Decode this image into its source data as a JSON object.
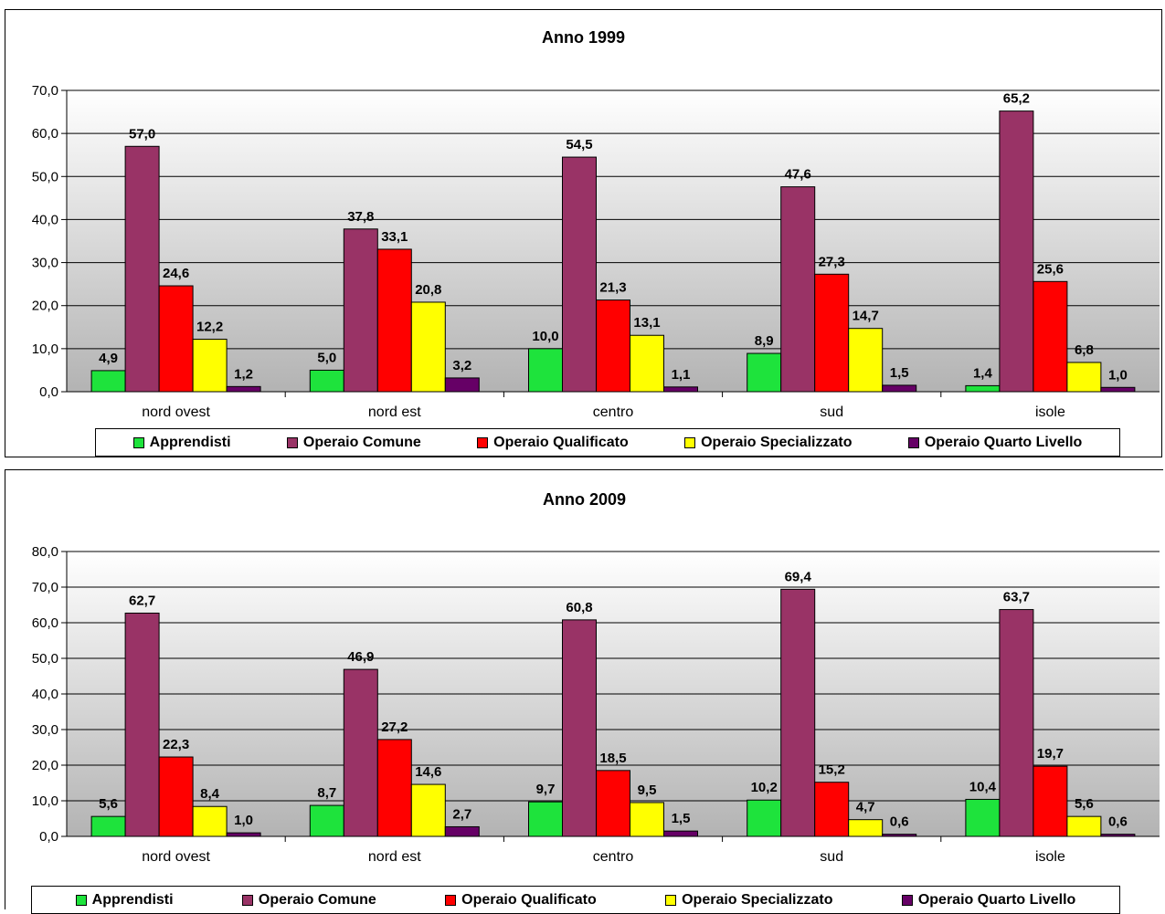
{
  "chart_data": [
    {
      "type": "bar",
      "title": "Anno 1999",
      "categories": [
        "nord ovest",
        "nord est",
        "centro",
        "sud",
        "isole"
      ],
      "ylim": [
        0,
        70
      ],
      "yticks": [
        "0,0",
        "10,0",
        "20,0",
        "30,0",
        "40,0",
        "50,0",
        "60,0",
        "70,0"
      ],
      "grid": true,
      "legend_position": "bottom",
      "series": [
        {
          "name": "Apprendisti",
          "color": "#1ee33c",
          "values": [
            4.9,
            5.0,
            10.0,
            8.9,
            1.4
          ],
          "labels": [
            "4,9",
            "5,0",
            "10,0",
            "8,9",
            "1,4"
          ]
        },
        {
          "name": "Operaio Comune",
          "color": "#993366",
          "values": [
            57.0,
            37.8,
            54.5,
            47.6,
            65.2
          ],
          "labels": [
            "57,0",
            "37,8",
            "54,5",
            "47,6",
            "65,2"
          ]
        },
        {
          "name": "Operaio Qualificato",
          "color": "#ff0000",
          "values": [
            24.6,
            33.1,
            21.3,
            27.3,
            25.6
          ],
          "labels": [
            "24,6",
            "33,1",
            "21,3",
            "27,3",
            "25,6"
          ]
        },
        {
          "name": "Operaio Specializzato",
          "color": "#ffff00",
          "values": [
            12.2,
            20.8,
            13.1,
            14.7,
            6.8
          ],
          "labels": [
            "12,2",
            "20,8",
            "13,1",
            "14,7",
            "6,8"
          ]
        },
        {
          "name": "Operaio Quarto Livello",
          "color": "#660066",
          "values": [
            1.2,
            3.2,
            1.1,
            1.5,
            1.0
          ],
          "labels": [
            "1,2",
            "3,2",
            "1,1",
            "1,5",
            "1,0"
          ]
        }
      ]
    },
    {
      "type": "bar",
      "title": "Anno 2009",
      "categories": [
        "nord ovest",
        "nord est",
        "centro",
        "sud",
        "isole"
      ],
      "ylim": [
        0,
        80
      ],
      "yticks": [
        "0,0",
        "10,0",
        "20,0",
        "30,0",
        "40,0",
        "50,0",
        "60,0",
        "70,0",
        "80,0"
      ],
      "grid": true,
      "legend_position": "bottom",
      "series": [
        {
          "name": "Apprendisti",
          "color": "#1ee33c",
          "values": [
            5.6,
            8.7,
            9.7,
            10.2,
            10.4
          ],
          "labels": [
            "5,6",
            "8,7",
            "9,7",
            "10,2",
            "10,4"
          ]
        },
        {
          "name": "Operaio Comune",
          "color": "#993366",
          "values": [
            62.7,
            46.9,
            60.8,
            69.4,
            63.7
          ],
          "labels": [
            "62,7",
            "46,9",
            "60,8",
            "69,4",
            "63,7"
          ]
        },
        {
          "name": "Operaio Qualificato",
          "color": "#ff0000",
          "values": [
            22.3,
            27.2,
            18.5,
            15.2,
            19.7
          ],
          "labels": [
            "22,3",
            "27,2",
            "18,5",
            "15,2",
            "19,7"
          ]
        },
        {
          "name": "Operaio Specializzato",
          "color": "#ffff00",
          "values": [
            8.4,
            14.6,
            9.5,
            4.7,
            5.6
          ],
          "labels": [
            "8,4",
            "14,6",
            "9,5",
            "4,7",
            "5,6"
          ]
        },
        {
          "name": "Operaio Quarto Livello",
          "color": "#660066",
          "values": [
            1.0,
            2.7,
            1.5,
            0.6,
            0.6
          ],
          "labels": [
            "1,0",
            "2,7",
            "1,5",
            "0,6",
            "0,6"
          ]
        }
      ]
    }
  ]
}
